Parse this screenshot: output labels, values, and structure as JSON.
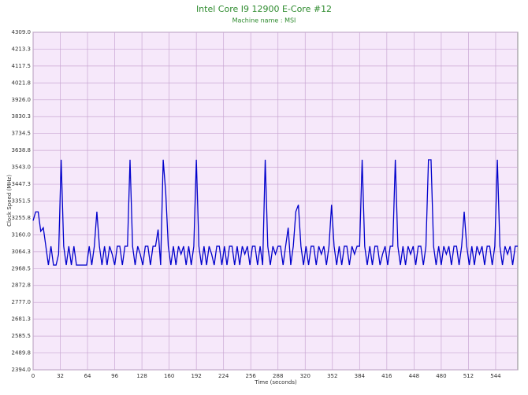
{
  "chart_data": {
    "type": "line",
    "title": "Intel Core I9 12900 E-Core #12",
    "subtitle": "Machine name : MSI",
    "x_label": "Time (seconds)",
    "y_label": "Clock Speed (MHz)",
    "xlim": [
      0,
      570
    ],
    "ylim": [
      2394,
      4309
    ],
    "xticks": [
      0,
      32,
      64,
      96,
      128,
      160,
      192,
      224,
      256,
      288,
      320,
      352,
      384,
      416,
      448,
      480,
      512,
      544
    ],
    "yticks": [
      {
        "value": 2394,
        "label": "2394.0"
      },
      2489.8,
      2585.5,
      2681.3,
      {
        "value": 2777,
        "label": "2777.0"
      },
      2872.8,
      2968.5,
      3064.3,
      {
        "value": 3160,
        "label": "3160.0"
      },
      3255.8,
      3351.5,
      3447.3,
      {
        "value": 3543,
        "label": "3543.0"
      },
      3638.8,
      3734.5,
      3830.3,
      {
        "value": 3926,
        "label": "3926.0"
      },
      4021.8,
      4117.5,
      4213.3,
      {
        "value": 4309,
        "label": "4309.0"
      }
    ],
    "grid": true,
    "background": "#f6e8fa",
    "grid_color": "#c9a6d3",
    "x": [
      0,
      3,
      6,
      9,
      12,
      15,
      18,
      21,
      24,
      27,
      30,
      33,
      36,
      39,
      42,
      45,
      48,
      51,
      54,
      57,
      60,
      63,
      66,
      69,
      72,
      75,
      78,
      81,
      84,
      87,
      90,
      93,
      96,
      99,
      102,
      105,
      108,
      111,
      114,
      117,
      120,
      123,
      126,
      129,
      132,
      135,
      138,
      141,
      144,
      147,
      150,
      153,
      156,
      159,
      162,
      165,
      168,
      171,
      174,
      177,
      180,
      183,
      186,
      189,
      192,
      195,
      198,
      201,
      204,
      207,
      210,
      213,
      216,
      219,
      222,
      225,
      228,
      231,
      234,
      237,
      240,
      243,
      246,
      249,
      252,
      255,
      258,
      261,
      264,
      267,
      270,
      273,
      276,
      279,
      282,
      285,
      288,
      291,
      294,
      297,
      300,
      303,
      306,
      309,
      312,
      315,
      318,
      321,
      324,
      327,
      330,
      333,
      336,
      339,
      342,
      345,
      348,
      351,
      354,
      357,
      360,
      363,
      366,
      369,
      372,
      375,
      378,
      381,
      384,
      387,
      390,
      393,
      396,
      399,
      402,
      405,
      408,
      411,
      414,
      417,
      420,
      423,
      426,
      429,
      432,
      435,
      438,
      441,
      444,
      447,
      450,
      453,
      456,
      459,
      462,
      465,
      468,
      471,
      474,
      477,
      480,
      483,
      486,
      489,
      492,
      495,
      498,
      501,
      504,
      507,
      510,
      513,
      516,
      519,
      522,
      525,
      528,
      531,
      534,
      537,
      540,
      543,
      546,
      549,
      552,
      555,
      558,
      561,
      564,
      567,
      570
    ],
    "series": [
      {
        "color": "#0000cc",
        "values": [
          3240,
          3290,
          3290,
          3180,
          3200,
          3095,
          2988,
          3095,
          2988,
          2988,
          3050,
          3586,
          3095,
          2988,
          3095,
          2988,
          3095,
          2988,
          2988,
          2988,
          2988,
          2988,
          3095,
          2988,
          3095,
          3291,
          3095,
          2988,
          3095,
          2988,
          3095,
          3050,
          2988,
          3095,
          3095,
          2988,
          3095,
          3095,
          3586,
          3095,
          2988,
          3095,
          3050,
          2988,
          3095,
          3095,
          2988,
          3095,
          3095,
          3190,
          2988,
          3586,
          3398,
          3095,
          2988,
          3095,
          2988,
          3095,
          3050,
          3095,
          2988,
          3095,
          2988,
          3095,
          3586,
          3095,
          2988,
          3095,
          2988,
          3095,
          3050,
          2988,
          3095,
          3095,
          2988,
          3095,
          2988,
          3095,
          3095,
          2988,
          3095,
          2988,
          3095,
          3050,
          3095,
          2988,
          3095,
          3095,
          2988,
          3095,
          2988,
          3586,
          3095,
          2988,
          3095,
          3050,
          3095,
          3095,
          2988,
          3095,
          3200,
          2988,
          3095,
          3291,
          3330,
          3095,
          2988,
          3095,
          2988,
          3095,
          3095,
          2988,
          3095,
          3050,
          3095,
          2988,
          3095,
          3330,
          3095,
          2988,
          3095,
          2988,
          3095,
          3095,
          2988,
          3095,
          3050,
          3095,
          3095,
          3586,
          3095,
          2988,
          3095,
          2988,
          3095,
          3095,
          2988,
          3050,
          3095,
          2988,
          3095,
          3095,
          3586,
          3095,
          2988,
          3095,
          2988,
          3095,
          3050,
          3095,
          2988,
          3095,
          3095,
          2988,
          3095,
          3586,
          3586,
          3095,
          2988,
          3095,
          2988,
          3095,
          3050,
          3095,
          2988,
          3095,
          3095,
          2988,
          3095,
          3291,
          3095,
          2988,
          3095,
          2988,
          3095,
          3050,
          3095,
          2988,
          3095,
          3095,
          2988,
          3095,
          3586,
          3095,
          2988,
          3095,
          3050,
          3095,
          2988,
          3095,
          3095
        ]
      }
    ]
  }
}
